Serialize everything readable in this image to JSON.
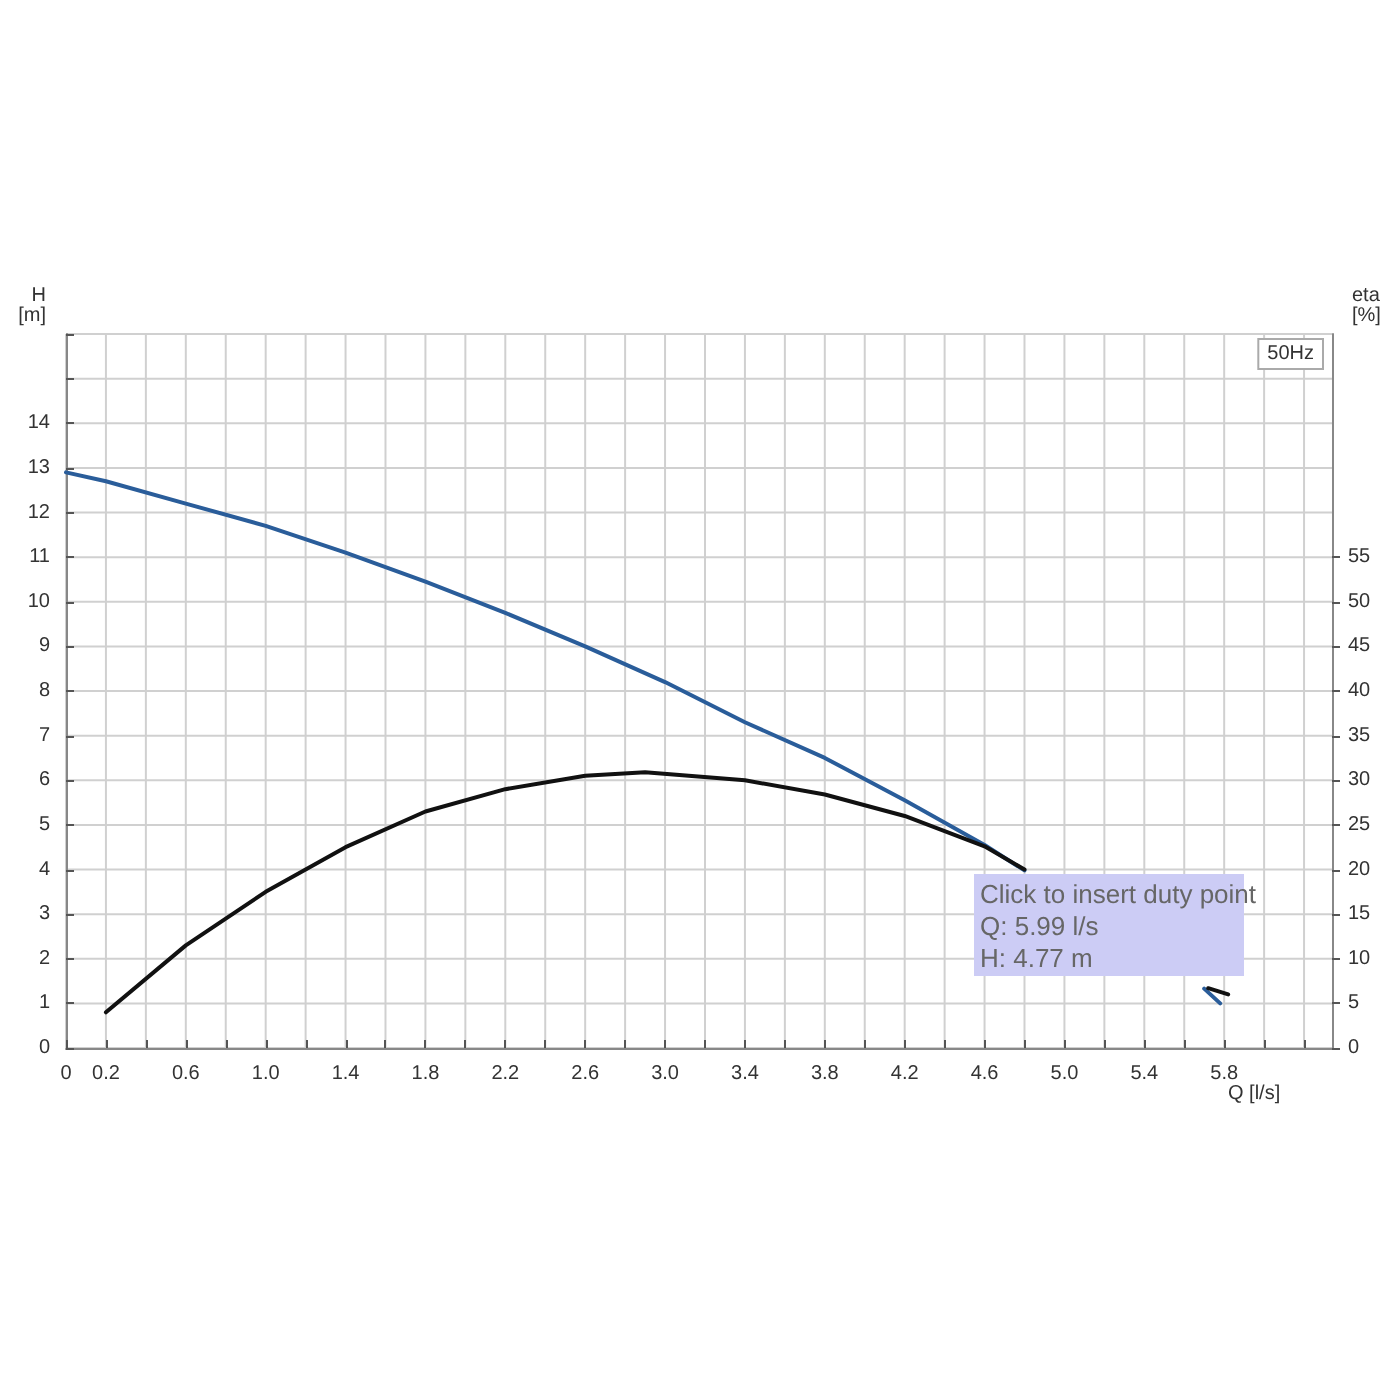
{
  "chart_data": {
    "type": "line",
    "xlabel": "Q [l/s]",
    "ylabel": "H [m]",
    "y2label": "eta [%]",
    "series": [
      {
        "color": "#2a5d9a",
        "x": [
          0,
          0.2,
          0.6,
          1.0,
          1.4,
          1.8,
          2.2,
          2.6,
          3.0,
          3.4,
          3.8,
          4.2,
          4.6,
          4.8,
          5.2,
          5.7,
          5.78
        ],
        "values": [
          12.9,
          12.7,
          12.2,
          11.7,
          11.1,
          10.45,
          9.75,
          9.0,
          8.2,
          7.3,
          6.5,
          5.55,
          4.55,
          3.98,
          null,
          1.33,
          1.0
        ]
      },
      {
        "color": "#111111",
        "axis": "y2",
        "x": [
          0.2,
          0.6,
          1.0,
          1.4,
          1.8,
          2.2,
          2.6,
          2.9,
          3.4,
          3.8,
          4.2,
          4.6,
          4.8,
          5.2,
          5.72,
          5.82
        ],
        "values": [
          4,
          11.5,
          17.5,
          22.5,
          26.5,
          29,
          30.5,
          30.9,
          30,
          28.4,
          26,
          22.6,
          20,
          null,
          6.7,
          6
        ]
      }
    ],
    "xlim": [
      0,
      6.34
    ],
    "xticks": [
      0,
      0.2,
      {
        "value": 0.4,
        "label": null
      },
      0.6,
      {
        "value": 0.8,
        "label": null
      },
      "1.0",
      {
        "value": 1.2,
        "label": null
      },
      1.4,
      {
        "value": 1.6,
        "label": null
      },
      1.8,
      {
        "value": 2.0,
        "label": null
      },
      2.2,
      {
        "value": 2.4,
        "label": null
      },
      2.6,
      {
        "value": 2.8,
        "label": null
      },
      {
        "value": 3.0,
        "label": "3.0"
      },
      {
        "value": 3.2,
        "label": null
      },
      3.4,
      {
        "value": 3.6,
        "label": null
      },
      3.8,
      {
        "value": 4.0,
        "label": null
      },
      4.2,
      {
        "value": 4.4,
        "label": null
      },
      4.6,
      {
        "value": 4.8,
        "label": null
      },
      {
        "value": 5.0,
        "label": "5.0"
      },
      {
        "value": 5.2,
        "label": null
      },
      5.4,
      {
        "value": 5.6,
        "label": null
      },
      5.8,
      {
        "value": 6.0,
        "label": null
      },
      {
        "value": 6.2,
        "label": null
      }
    ],
    "ylim": [
      0,
      16
    ],
    "yticks": [
      0,
      1,
      2,
      3,
      4,
      5,
      6,
      7,
      8,
      9,
      10,
      11,
      12,
      13,
      14,
      {
        "value": 15,
        "label": null
      },
      {
        "value": 16,
        "label": null
      }
    ],
    "y2lim": [
      0,
      80
    ],
    "y2ticks": [
      0,
      5,
      10,
      15,
      20,
      25,
      30,
      35,
      40,
      45,
      50,
      55
    ],
    "grid": true,
    "marker": "none",
    "line_style": "solid",
    "annotations": [
      "50Hz",
      "Click to insert duty point",
      "Q: 5.99 l/s",
      "H: 4.77 m"
    ]
  }
}
